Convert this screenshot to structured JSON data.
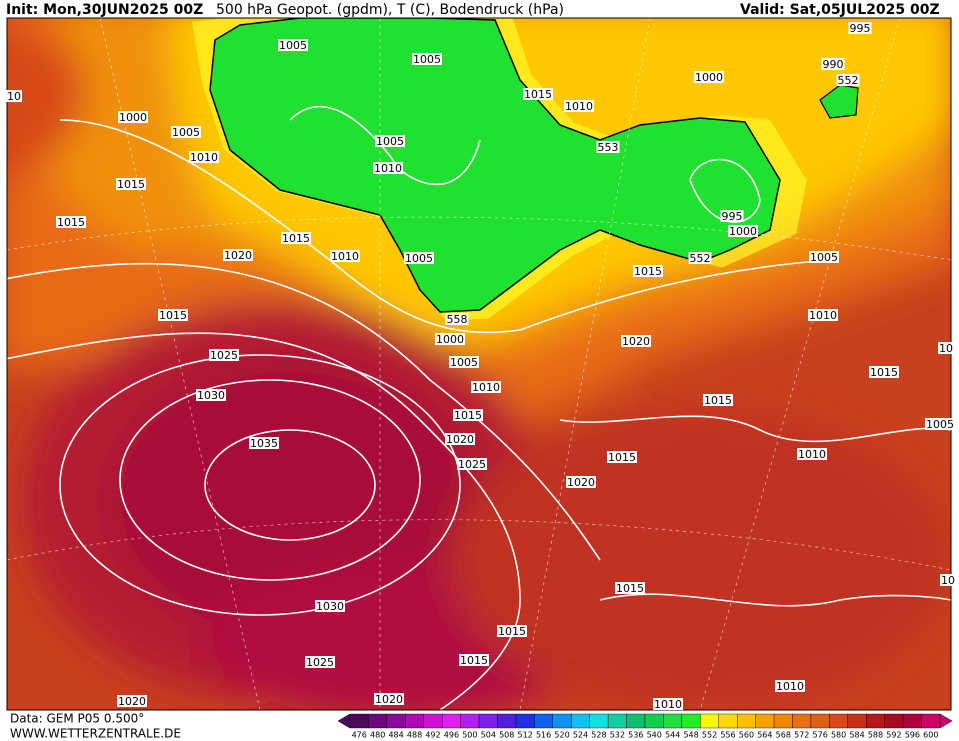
{
  "header": {
    "init": "Init: Mon,30JUN2025 00Z",
    "title": "500 hPa Geopot. (gpdm), T (C), Bodendruck (hPa)",
    "valid": "Valid: Sat,05JUL2025 00Z"
  },
  "footer": {
    "source": "Data: GEM P05 0.500°",
    "site": "WWW.WETTERZENTRALE.DE"
  },
  "isobar_labels": [
    "10",
    "1005",
    "1005",
    "1015",
    "1010",
    "1000",
    "995",
    "990",
    "552",
    "1000",
    "1005",
    "1010",
    "1005",
    "1010",
    "553",
    "1015",
    "1015",
    "995",
    "1000",
    "1015",
    "1020",
    "1010",
    "1005",
    "552",
    "1005",
    "1015",
    "1015",
    "558",
    "1010",
    "1000",
    "1020",
    "1025",
    "1005",
    "10",
    "1010",
    "1015",
    "1030",
    "1015",
    "1015",
    "1005",
    "1020",
    "1035",
    "1010",
    "1015",
    "1025",
    "1020",
    "1015",
    "1030",
    "10",
    "1015",
    "1015",
    "1025",
    "1010",
    "1020",
    "1020",
    "1010"
  ],
  "colorbar": {
    "labels": [
      "476",
      "480",
      "484",
      "488",
      "492",
      "496",
      "500",
      "504",
      "508",
      "512",
      "516",
      "520",
      "524",
      "528",
      "532",
      "536",
      "540",
      "544",
      "548",
      "552",
      "556",
      "560",
      "564",
      "568",
      "572",
      "576",
      "580",
      "584",
      "588",
      "592",
      "596",
      "600"
    ],
    "colors": [
      "#4a0a5a",
      "#6a0a7a",
      "#8a0a9a",
      "#b00ab8",
      "#d010d8",
      "#e020f0",
      "#b020f0",
      "#8020f0",
      "#5020e0",
      "#2030e0",
      "#1060f0",
      "#1090f0",
      "#10c0f0",
      "#10e0e0",
      "#10d0a0",
      "#10c070",
      "#10d050",
      "#20e040",
      "#20f020",
      "#f8f800",
      "#ffd800",
      "#ffc000",
      "#f8a000",
      "#f08800",
      "#e87010",
      "#e06018",
      "#d84818",
      "#c83018",
      "#b81818",
      "#a80a20",
      "#b00040",
      "#d0006a"
    ]
  }
}
